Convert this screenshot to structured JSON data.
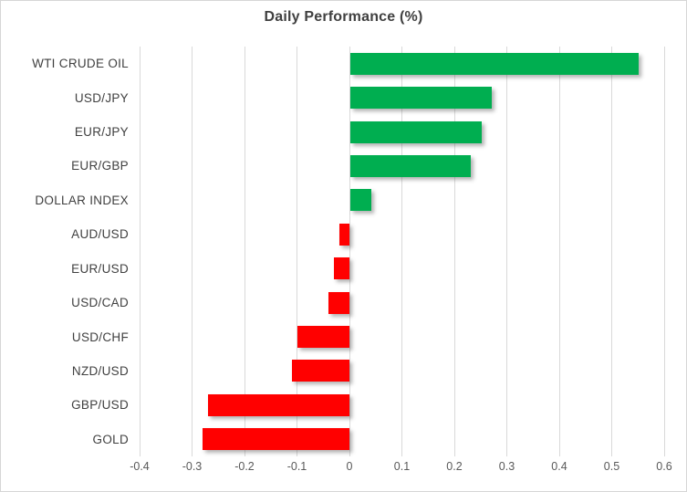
{
  "chart_data": {
    "type": "bar",
    "orientation": "horizontal",
    "title": "Daily Performance (%)",
    "categories": [
      "WTI CRUDE OIL",
      "USD/JPY",
      "EUR/JPY",
      "EUR/GBP",
      "DOLLAR INDEX",
      "AUD/USD",
      "EUR/USD",
      "USD/CAD",
      "USD/CHF",
      "NZD/USD",
      "GBP/USD",
      "GOLD"
    ],
    "values": [
      0.55,
      0.27,
      0.25,
      0.23,
      0.04,
      -0.02,
      -0.03,
      -0.04,
      -0.1,
      -0.11,
      -0.27,
      -0.28
    ],
    "xlim": [
      -0.4,
      0.6
    ],
    "x_ticks": [
      -0.4,
      -0.3,
      -0.2,
      -0.1,
      0,
      0.1,
      0.2,
      0.3,
      0.4,
      0.5,
      0.6
    ],
    "x_tick_labels": [
      "-0.4",
      "-0.3",
      "-0.2",
      "-0.1",
      "0",
      "0.1",
      "0.2",
      "0.3",
      "0.4",
      "0.5",
      "0.6"
    ],
    "grid": true,
    "legend": false,
    "colors": {
      "positive": "#00ae50",
      "negative": "#ff0000",
      "gridline": "#d9d9d9",
      "title_text": "#404040",
      "category_text": "#404040",
      "tick_text": "#595959"
    }
  }
}
